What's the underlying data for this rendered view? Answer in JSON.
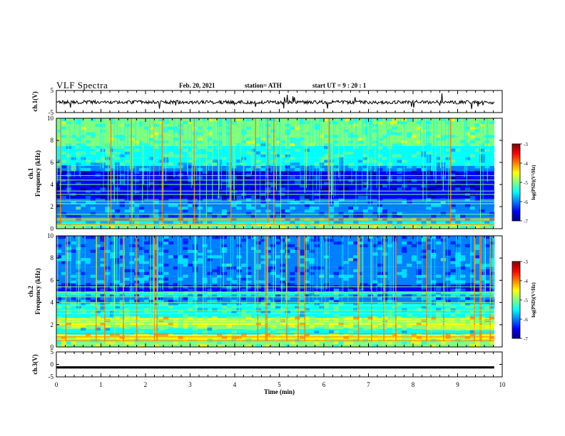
{
  "header": {
    "title": "VLF Spectra",
    "date": "Feb. 20, 2021",
    "station": "station= ATH",
    "start_ut": "start  UT =   9 : 20 : 1"
  },
  "chart_data": [
    {
      "type": "line",
      "panel": "ch1-waveform",
      "ylabel": "ch.1(V)",
      "ylim": [
        -5,
        5
      ],
      "y_ticks": [
        "5",
        "-5"
      ],
      "x_range_min": [
        0,
        9.82
      ],
      "baseline_v": -0.3,
      "trace_color": "#000000"
    },
    {
      "type": "heatmap",
      "panel": "ch1-spectrogram",
      "ylabel": "ch.1\nFrequency  (kHz)",
      "ylim": [
        0,
        10
      ],
      "y_ticks": [
        "0",
        "2",
        "4",
        "6",
        "8",
        "10"
      ],
      "x_range_min": [
        0,
        9.82
      ],
      "colorbar": {
        "label": "log(PSD)(V²/Hz)",
        "range": [
          -7,
          -3
        ],
        "ticks": [
          "-3",
          "-4",
          "-5",
          "-6",
          "-7"
        ]
      }
    },
    {
      "type": "heatmap",
      "panel": "ch2-spectrogram",
      "ylabel": "ch.2\nFrequency  (kHz)",
      "ylim": [
        0,
        10
      ],
      "y_ticks": [
        "0",
        "2",
        "4",
        "6",
        "8",
        "10"
      ],
      "x_range_min": [
        0,
        9.82
      ],
      "colorbar": {
        "label": "log(PSD)(V²/Hz)",
        "range": [
          -7,
          -3
        ],
        "ticks": [
          "-3",
          "-4",
          "-5",
          "-6",
          "-7"
        ]
      }
    },
    {
      "type": "line",
      "panel": "ch3-waveform",
      "ylabel": "ch.3(V)",
      "ylim": [
        -5,
        5
      ],
      "y_ticks": [
        "5",
        "0",
        "-5"
      ],
      "x_range_min": [
        0,
        9.82
      ],
      "baseline_v": -1.2,
      "trace_color": "#000000"
    }
  ],
  "x_axis": {
    "label": "Time  (min)",
    "range": [
      0,
      10
    ],
    "ticks": [
      "0",
      "1",
      "2",
      "3",
      "4",
      "5",
      "6",
      "7",
      "8",
      "9",
      "10"
    ]
  },
  "colors": {
    "jet": [
      "#00007f",
      "#0000ff",
      "#007fff",
      "#00ffff",
      "#7fff7f",
      "#ffff00",
      "#ff7f00",
      "#ff0000",
      "#7f0000"
    ]
  }
}
